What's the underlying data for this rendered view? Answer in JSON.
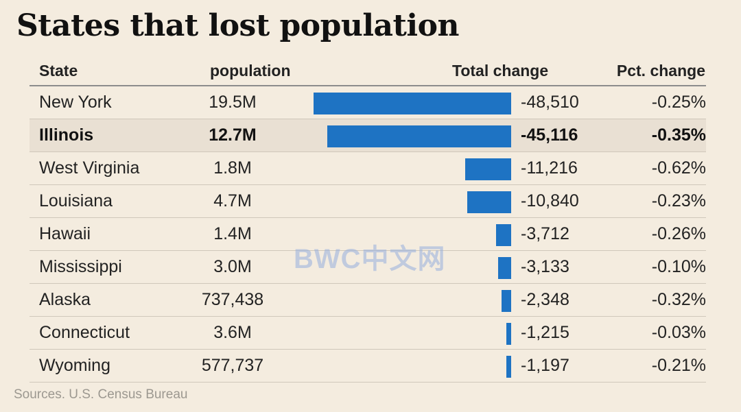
{
  "title": "States that lost population",
  "source": "Sources. U.S. Census Bureau",
  "watermark": "BWC中文网",
  "colors": {
    "bar": "#1e73c3",
    "background": "#f4ecdf",
    "highlight_row": "#e9e0d3"
  },
  "chart_data": {
    "type": "bar",
    "orientation": "horizontal",
    "columns": [
      "State",
      "population",
      "Total change",
      "Pct. change"
    ],
    "highlight": "Illinois",
    "rows": [
      {
        "state": "New York",
        "population": "19.5M",
        "total_change": -48510,
        "total_change_label": "-48,510",
        "pct_change": "-0.25%"
      },
      {
        "state": "Illinois",
        "population": "12.7M",
        "total_change": -45116,
        "total_change_label": "-45,116",
        "pct_change": "-0.35%"
      },
      {
        "state": "West Virginia",
        "population": "1.8M",
        "total_change": -11216,
        "total_change_label": "-11,216",
        "pct_change": "-0.62%"
      },
      {
        "state": "Louisiana",
        "population": "4.7M",
        "total_change": -10840,
        "total_change_label": "-10,840",
        "pct_change": "-0.23%"
      },
      {
        "state": "Hawaii",
        "population": "1.4M",
        "total_change": -3712,
        "total_change_label": "-3,712",
        "pct_change": "-0.26%"
      },
      {
        "state": "Mississippi",
        "population": "3.0M",
        "total_change": -3133,
        "total_change_label": "-3,133",
        "pct_change": "-0.10%"
      },
      {
        "state": "Alaska",
        "population": "737,438",
        "total_change": -2348,
        "total_change_label": "-2,348",
        "pct_change": "-0.32%"
      },
      {
        "state": "Connecticut",
        "population": "3.6M",
        "total_change": -1215,
        "total_change_label": "-1,215",
        "pct_change": "-0.03%"
      },
      {
        "state": "Wyoming",
        "population": "577,737",
        "total_change": -1197,
        "total_change_label": "-1,197",
        "pct_change": "-0.21%"
      }
    ]
  }
}
